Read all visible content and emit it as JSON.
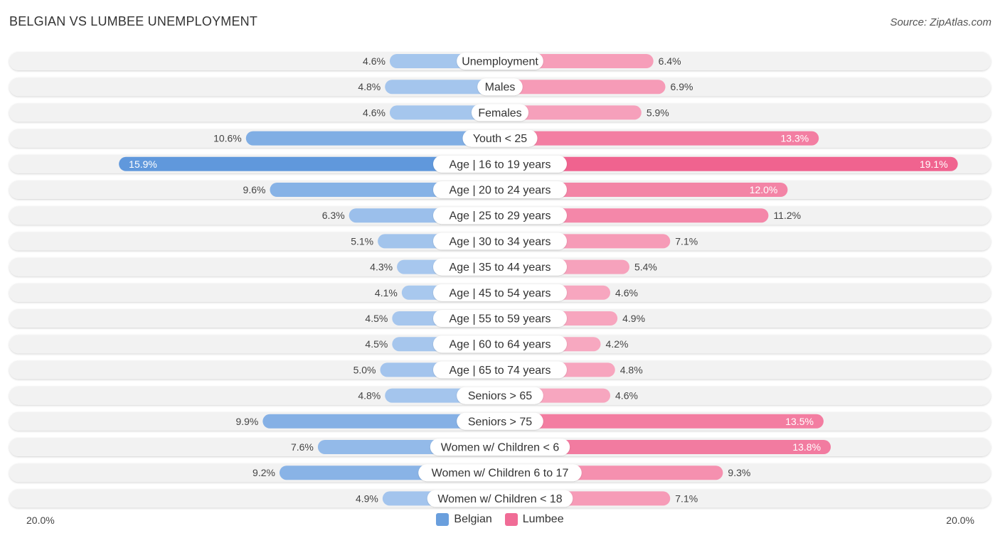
{
  "header": {
    "title": "BELGIAN VS LUMBEE UNEMPLOYMENT",
    "source": "Source: ZipAtlas.com"
  },
  "colors": {
    "belgian": "#6a9fdd",
    "lumbee": "#f06c96"
  },
  "chart_data": {
    "type": "bar",
    "orientation": "horizontal-diverging",
    "title": "BELGIAN VS LUMBEE UNEMPLOYMENT",
    "xlim": [
      -20,
      20
    ],
    "axis_labels": {
      "left": "20.0%",
      "right": "20.0%"
    },
    "legend": [
      {
        "name": "Belgian",
        "color": "#6a9fdd"
      },
      {
        "name": "Lumbee",
        "color": "#f06c96"
      }
    ],
    "categories": [
      "Unemployment",
      "Males",
      "Females",
      "Youth < 25",
      "Age | 16 to 19 years",
      "Age | 20 to 24 years",
      "Age | 25 to 29 years",
      "Age | 30 to 34 years",
      "Age | 35 to 44 years",
      "Age | 45 to 54 years",
      "Age | 55 to 59 years",
      "Age | 60 to 64 years",
      "Age | 65 to 74 years",
      "Seniors > 65",
      "Seniors > 75",
      "Women w/ Children < 6",
      "Women w/ Children 6 to 17",
      "Women w/ Children < 18"
    ],
    "series": [
      {
        "name": "Belgian",
        "values": [
          4.6,
          4.8,
          4.6,
          10.6,
          15.9,
          9.6,
          6.3,
          5.1,
          4.3,
          4.1,
          4.5,
          4.5,
          5.0,
          4.8,
          9.9,
          7.6,
          9.2,
          4.9
        ],
        "labels": [
          "4.6%",
          "4.8%",
          "4.6%",
          "10.6%",
          "15.9%",
          "9.6%",
          "6.3%",
          "5.1%",
          "4.3%",
          "4.1%",
          "4.5%",
          "4.5%",
          "5.0%",
          "4.8%",
          "9.9%",
          "7.6%",
          "9.2%",
          "4.9%"
        ]
      },
      {
        "name": "Lumbee",
        "values": [
          6.4,
          6.9,
          5.9,
          13.3,
          19.1,
          12.0,
          11.2,
          7.1,
          5.4,
          4.6,
          4.9,
          4.2,
          4.8,
          4.6,
          13.5,
          13.8,
          9.3,
          7.1
        ],
        "labels": [
          "6.4%",
          "6.9%",
          "5.9%",
          "13.3%",
          "19.1%",
          "12.0%",
          "11.2%",
          "7.1%",
          "5.4%",
          "4.6%",
          "4.9%",
          "4.2%",
          "4.8%",
          "4.6%",
          "13.5%",
          "13.8%",
          "9.3%",
          "7.1%"
        ]
      }
    ]
  }
}
